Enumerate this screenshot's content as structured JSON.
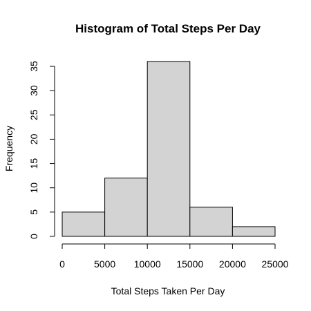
{
  "chart_data": {
    "type": "bar",
    "title": "Histogram of Total Steps Per Day",
    "xlabel": "Total Steps Taken Per Day",
    "ylabel": "Frequency",
    "bins": [
      {
        "from": 0,
        "to": 5000,
        "count": 5
      },
      {
        "from": 5000,
        "to": 10000,
        "count": 12
      },
      {
        "from": 10000,
        "to": 15000,
        "count": 36
      },
      {
        "from": 15000,
        "to": 20000,
        "count": 6
      },
      {
        "from": 20000,
        "to": 25000,
        "count": 2
      }
    ],
    "xlim": [
      0,
      25000
    ],
    "ylim": [
      0,
      35
    ],
    "x_ticks": [
      "0",
      "5000",
      "10000",
      "15000",
      "20000",
      "25000"
    ],
    "y_ticks": [
      "0",
      "5",
      "10",
      "15",
      "20",
      "25",
      "30",
      "35"
    ],
    "bar_fill": "#d3d3d3",
    "bar_stroke": "#000000",
    "grid": false,
    "legend": "none"
  }
}
